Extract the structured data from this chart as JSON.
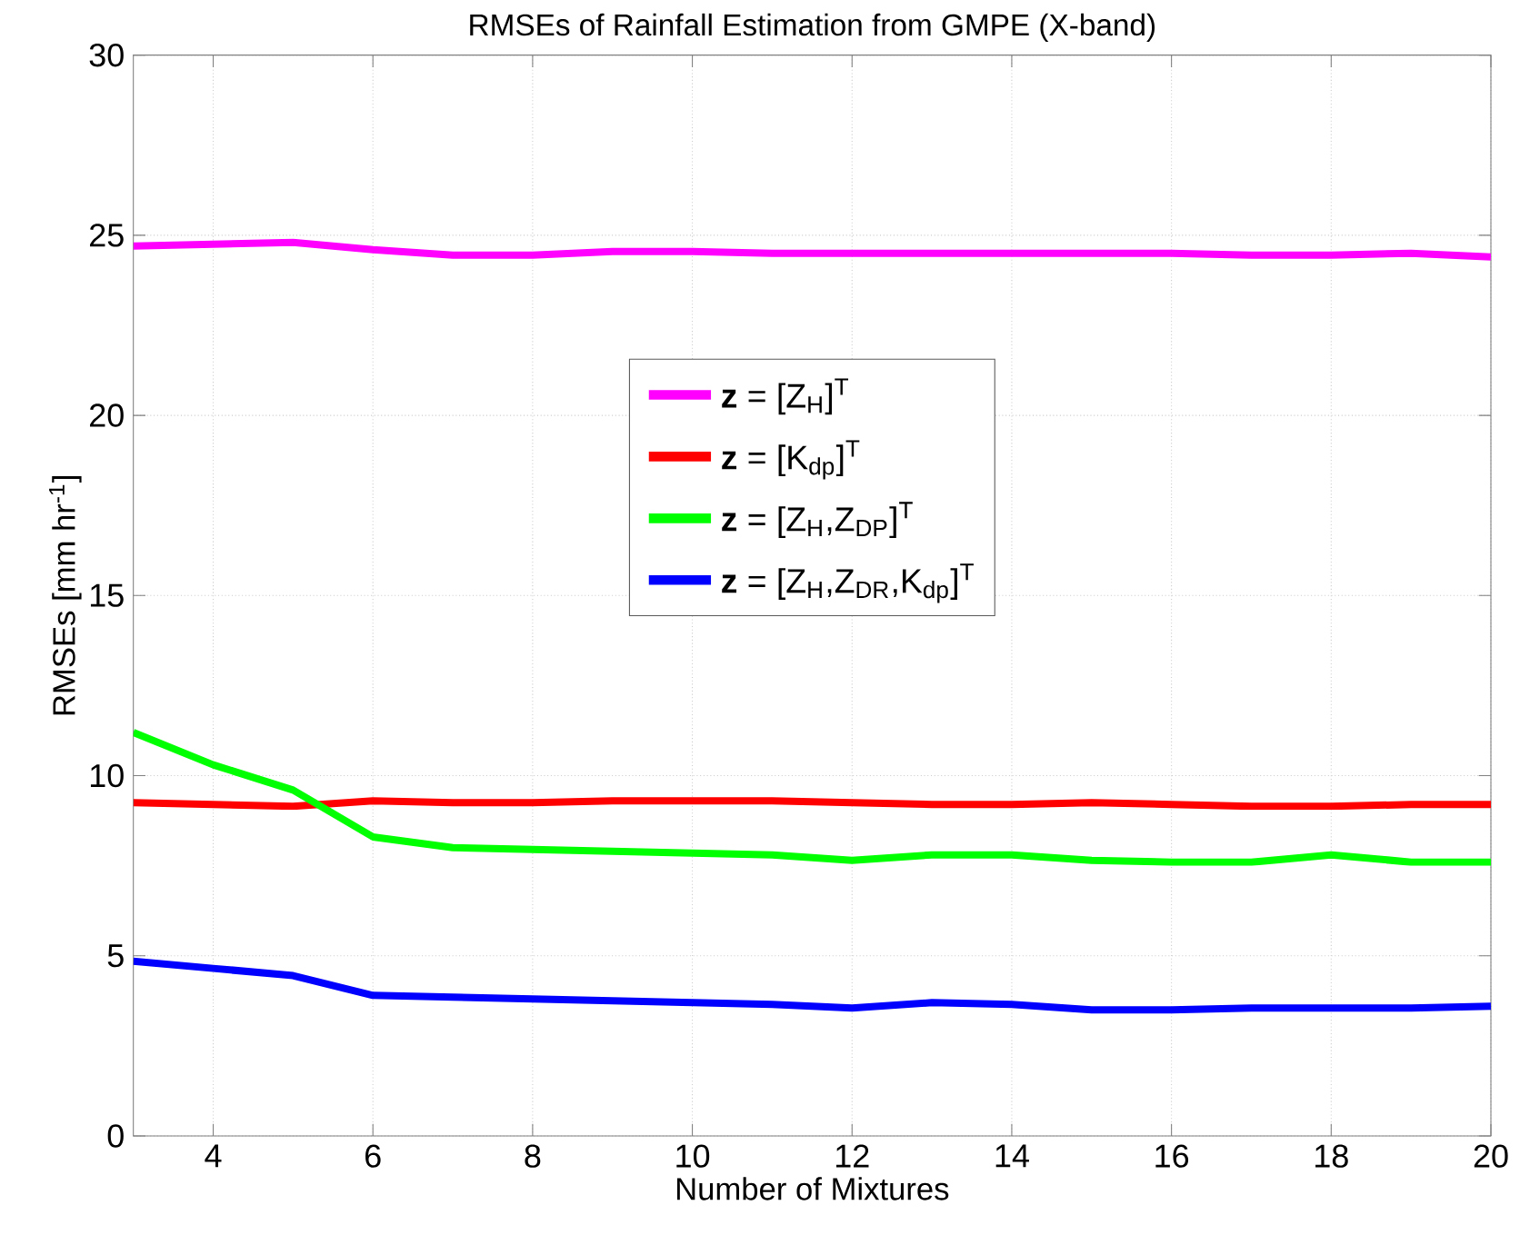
{
  "chart_data": {
    "type": "line",
    "title": "RMSEs of Rainfall Estimation from GMPE (X-band)",
    "xlabel": "Number of Mixtures",
    "ylabel": "RMSEs [mm hr$^{-1}$]",
    "x": [
      3,
      4,
      5,
      6,
      7,
      8,
      9,
      10,
      11,
      12,
      13,
      14,
      15,
      16,
      17,
      18,
      19,
      20
    ],
    "series": [
      {
        "name": "**z** = [Z$_{H}$]$^{T}$",
        "color": "#ff00ff",
        "values": [
          24.7,
          24.75,
          24.8,
          24.6,
          24.45,
          24.45,
          24.55,
          24.55,
          24.5,
          24.5,
          24.5,
          24.5,
          24.5,
          24.5,
          24.45,
          24.45,
          24.5,
          24.4
        ]
      },
      {
        "name": "**z** = [K$_{dp}$]$^{T}$",
        "color": "#ff0000",
        "values": [
          9.25,
          9.2,
          9.15,
          9.3,
          9.25,
          9.25,
          9.3,
          9.3,
          9.3,
          9.25,
          9.2,
          9.2,
          9.25,
          9.2,
          9.15,
          9.15,
          9.2,
          9.2
        ]
      },
      {
        "name": "**z** = [Z$_{H}$,Z$_{DP}$]$^{T}$",
        "color": "#00ff00",
        "values": [
          11.2,
          10.3,
          9.6,
          8.3,
          8.0,
          7.95,
          7.9,
          7.85,
          7.8,
          7.65,
          7.8,
          7.8,
          7.65,
          7.6,
          7.6,
          7.8,
          7.6,
          7.6
        ]
      },
      {
        "name": "**z** = [Z$_{H}$,Z$_{DR}$,K$_{dp}$]$^{T}$",
        "color": "#0000ff",
        "values": [
          4.85,
          4.65,
          4.45,
          3.9,
          3.85,
          3.8,
          3.75,
          3.7,
          3.65,
          3.55,
          3.7,
          3.65,
          3.5,
          3.5,
          3.55,
          3.55,
          3.55,
          3.6
        ]
      }
    ],
    "xlim": [
      3,
      20
    ],
    "ylim": [
      0,
      30
    ],
    "xticks": [
      4,
      6,
      8,
      10,
      12,
      14,
      16,
      18,
      20
    ],
    "yticks": [
      0,
      5,
      10,
      15,
      20,
      25,
      30
    ],
    "grid": true,
    "legend": "center",
    "line_style": "solid",
    "marker": "none"
  }
}
